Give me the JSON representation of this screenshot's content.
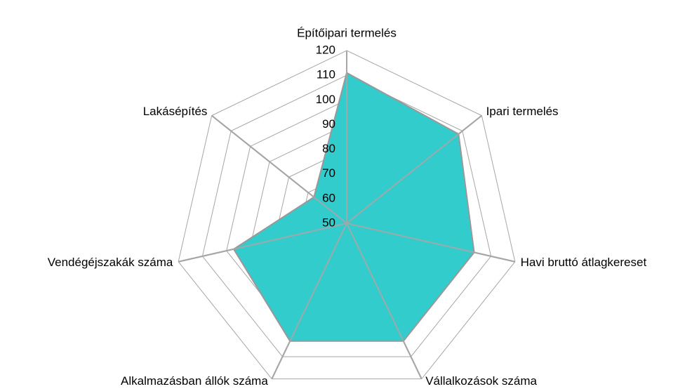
{
  "chart_data": {
    "type": "radar",
    "categories": [
      "Építőipari termelés",
      "Ipari termelés",
      "Havi bruttó átlagkereset",
      "Vállalkozások száma",
      "Alkalmazásban állók száma",
      "Vendégéjszakák száma",
      "Lakásépítés"
    ],
    "values": [
      111,
      108,
      103,
      103,
      103,
      97,
      67
    ],
    "color": "#33cccc",
    "ylim": [
      50,
      120
    ],
    "yticks": [
      50,
      60,
      70,
      80,
      90,
      100,
      110,
      120
    ],
    "grid": true
  }
}
